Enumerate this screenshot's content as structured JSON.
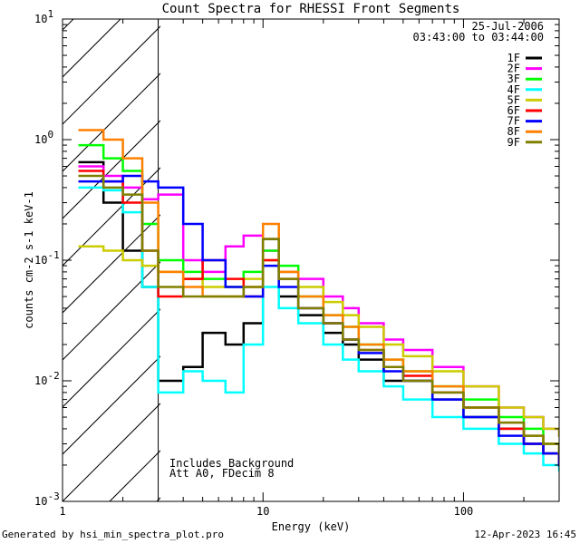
{
  "chart_data": {
    "type": "line",
    "title": "Count Spectra for RHESSI Front Segments",
    "xlabel": "Energy (keV)",
    "ylabel": "counts cm-2 s-1 keV-1",
    "xscale": "log",
    "yscale": "log",
    "xlim": [
      1,
      300
    ],
    "ylim": [
      0.001,
      10
    ],
    "x_tick_labels": [
      "1",
      "10",
      "100"
    ],
    "y_tick_labels": [
      {
        "base": "10",
        "exp": "-3"
      },
      {
        "base": "10",
        "exp": "-2"
      },
      {
        "base": "10",
        "exp": "-1"
      },
      {
        "base": "10",
        "exp": "0"
      },
      {
        "base": "10",
        "exp": "1"
      }
    ],
    "hatched_region_xlim": [
      1,
      3
    ],
    "legend_placement": "top-right",
    "date_text": "25-Jul-2006",
    "time_range_text": "03:43:00 to 03:44:00",
    "annotations": [
      "Includes Background",
      "Att A0, FDecim 8"
    ],
    "series": [
      {
        "name": "1F",
        "color": "#000000",
        "x": [
          1.2,
          1.6,
          2.0,
          2.5,
          3.0,
          4.0,
          5.0,
          6.5,
          8.0,
          10.0,
          12.0,
          15.0,
          20.0,
          25.0,
          30.0,
          40.0,
          50.0,
          70.0,
          100.0,
          150.0,
          200.0,
          250.0,
          300.0
        ],
        "y": [
          0.65,
          0.3,
          0.12,
          0.06,
          0.01,
          0.013,
          0.025,
          0.02,
          0.03,
          0.15,
          0.05,
          0.035,
          0.025,
          0.02,
          0.015,
          0.01,
          0.01,
          0.007,
          0.005,
          0.004,
          0.003,
          0.0025,
          0.002
        ]
      },
      {
        "name": "2F",
        "color": "#ff00ff",
        "x": [
          1.2,
          1.6,
          2.0,
          2.5,
          3.0,
          4.0,
          5.0,
          6.5,
          8.0,
          10.0,
          12.0,
          15.0,
          20.0,
          25.0,
          30.0,
          40.0,
          50.0,
          70.0,
          100.0,
          150.0,
          200.0,
          250.0,
          300.0
        ],
        "y": [
          0.6,
          0.5,
          0.4,
          0.32,
          0.35,
          0.1,
          0.08,
          0.13,
          0.16,
          0.12,
          0.08,
          0.07,
          0.05,
          0.04,
          0.03,
          0.022,
          0.018,
          0.013,
          0.009,
          0.006,
          0.005,
          0.004,
          0.0035
        ]
      },
      {
        "name": "3F",
        "color": "#00ff00",
        "x": [
          1.2,
          1.6,
          2.0,
          2.5,
          3.0,
          4.0,
          5.0,
          6.5,
          8.0,
          10.0,
          12.0,
          15.0,
          20.0,
          25.0,
          30.0,
          40.0,
          50.0,
          70.0,
          100.0,
          150.0,
          200.0,
          250.0,
          300.0
        ],
        "y": [
          0.9,
          0.7,
          0.55,
          0.2,
          0.1,
          0.08,
          0.07,
          0.06,
          0.08,
          0.12,
          0.09,
          0.05,
          0.035,
          0.028,
          0.02,
          0.015,
          0.012,
          0.009,
          0.007,
          0.005,
          0.004,
          0.003,
          0.0025
        ]
      },
      {
        "name": "4F",
        "color": "#00ffff",
        "x": [
          1.2,
          1.6,
          2.0,
          2.5,
          3.0,
          4.0,
          5.0,
          6.5,
          8.0,
          10.0,
          12.0,
          15.0,
          20.0,
          25.0,
          30.0,
          40.0,
          50.0,
          70.0,
          100.0,
          150.0,
          200.0,
          250.0,
          300.0
        ],
        "y": [
          0.4,
          0.38,
          0.25,
          0.06,
          0.008,
          0.012,
          0.01,
          0.008,
          0.02,
          0.06,
          0.04,
          0.03,
          0.02,
          0.015,
          0.012,
          0.009,
          0.007,
          0.005,
          0.004,
          0.003,
          0.0025,
          0.002,
          0.0018
        ]
      },
      {
        "name": "5F",
        "color": "#cccc00",
        "x": [
          1.2,
          1.6,
          2.0,
          2.5,
          3.0,
          4.0,
          5.0,
          6.5,
          8.0,
          10.0,
          12.0,
          15.0,
          20.0,
          25.0,
          30.0,
          40.0,
          50.0,
          70.0,
          100.0,
          150.0,
          200.0,
          250.0,
          300.0
        ],
        "y": [
          0.13,
          0.12,
          0.1,
          0.09,
          0.08,
          0.07,
          0.06,
          0.06,
          0.07,
          0.1,
          0.08,
          0.06,
          0.045,
          0.035,
          0.028,
          0.02,
          0.016,
          0.012,
          0.009,
          0.006,
          0.005,
          0.004,
          0.0035
        ]
      },
      {
        "name": "6F",
        "color": "#ff0000",
        "x": [
          1.2,
          1.6,
          2.0,
          2.5,
          3.0,
          4.0,
          5.0,
          6.5,
          8.0,
          10.0,
          12.0,
          15.0,
          20.0,
          25.0,
          30.0,
          40.0,
          50.0,
          70.0,
          100.0,
          150.0,
          200.0,
          250.0,
          300.0
        ],
        "y": [
          0.55,
          0.45,
          0.3,
          0.12,
          0.05,
          0.07,
          0.1,
          0.07,
          0.05,
          0.1,
          0.07,
          0.04,
          0.03,
          0.022,
          0.018,
          0.013,
          0.011,
          0.008,
          0.006,
          0.004,
          0.003,
          0.0025,
          0.002
        ]
      },
      {
        "name": "7F",
        "color": "#0000ff",
        "x": [
          1.2,
          1.6,
          2.0,
          2.5,
          3.0,
          4.0,
          5.0,
          6.5,
          8.0,
          10.0,
          12.0,
          15.0,
          20.0,
          25.0,
          30.0,
          40.0,
          50.0,
          70.0,
          100.0,
          150.0,
          200.0,
          250.0,
          300.0
        ],
        "y": [
          0.45,
          0.45,
          0.5,
          0.45,
          0.4,
          0.2,
          0.1,
          0.06,
          0.05,
          0.09,
          0.06,
          0.04,
          0.03,
          0.022,
          0.017,
          0.012,
          0.01,
          0.007,
          0.005,
          0.0035,
          0.003,
          0.0025,
          0.002
        ]
      },
      {
        "name": "8F",
        "color": "#ff8000",
        "x": [
          1.2,
          1.6,
          2.0,
          2.5,
          3.0,
          4.0,
          5.0,
          6.5,
          8.0,
          10.0,
          12.0,
          15.0,
          20.0,
          25.0,
          30.0,
          40.0,
          50.0,
          70.0,
          100.0,
          150.0,
          200.0,
          250.0,
          300.0
        ],
        "y": [
          1.2,
          1.0,
          0.7,
          0.3,
          0.08,
          0.06,
          0.05,
          0.05,
          0.06,
          0.2,
          0.08,
          0.05,
          0.035,
          0.028,
          0.02,
          0.015,
          0.012,
          0.009,
          0.006,
          0.0045,
          0.0035,
          0.003,
          0.0025
        ]
      },
      {
        "name": "9F",
        "color": "#808000",
        "x": [
          1.2,
          1.6,
          2.0,
          2.5,
          3.0,
          4.0,
          5.0,
          6.5,
          8.0,
          10.0,
          12.0,
          15.0,
          20.0,
          25.0,
          30.0,
          40.0,
          50.0,
          70.0,
          100.0,
          150.0,
          200.0,
          250.0,
          300.0
        ],
        "y": [
          0.5,
          0.4,
          0.35,
          0.12,
          0.06,
          0.05,
          0.05,
          0.05,
          0.06,
          0.15,
          0.07,
          0.04,
          0.03,
          0.022,
          0.018,
          0.013,
          0.01,
          0.008,
          0.006,
          0.0045,
          0.0035,
          0.003,
          0.0025
        ]
      }
    ]
  },
  "footer": {
    "generated_by": "Generated by hsi_min_spectra_plot.pro",
    "timestamp": "12-Apr-2023 16:45"
  }
}
